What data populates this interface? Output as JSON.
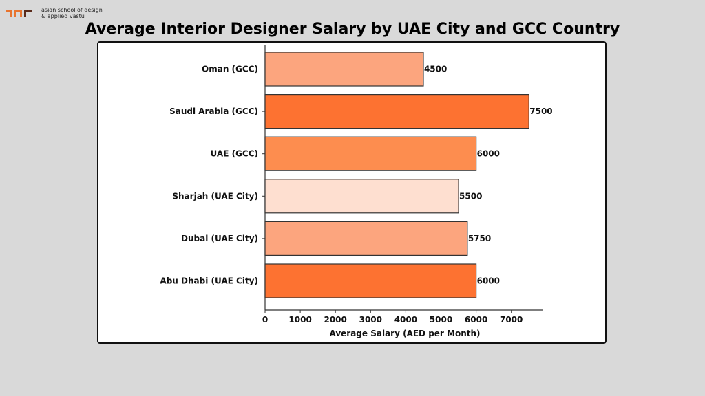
{
  "logo": {
    "line1": "asian school of design",
    "line2": "& applied vastu"
  },
  "title": "Average Interior Designer Salary by UAE City and GCC Country",
  "chart_data": {
    "type": "bar",
    "orientation": "horizontal",
    "title": "Average Interior Designer Salary by UAE City and GCC Country",
    "xlabel": "Average Salary (AED per Month)",
    "ylabel": "",
    "categories": [
      "Oman (GCC)",
      "Saudi Arabia (GCC)",
      "UAE (GCC)",
      "Sharjah (UAE City)",
      "Dubai (UAE City)",
      "Abu Dhabi (UAE City)"
    ],
    "values": [
      4500,
      7500,
      6000,
      5500,
      5750,
      6000
    ],
    "value_labels": [
      "4500",
      "7500",
      "6000",
      "5500",
      "5750",
      "6000"
    ],
    "colors": [
      "#fca57e",
      "#fd7231",
      "#fd8d4f",
      "#fedfd0",
      "#fca57e",
      "#fd7231"
    ],
    "xticks": [
      "0",
      "1000",
      "2000",
      "3000",
      "4000",
      "5000",
      "6000",
      "7000"
    ],
    "xlim": [
      0,
      7900
    ],
    "grid": false,
    "legend": null
  }
}
